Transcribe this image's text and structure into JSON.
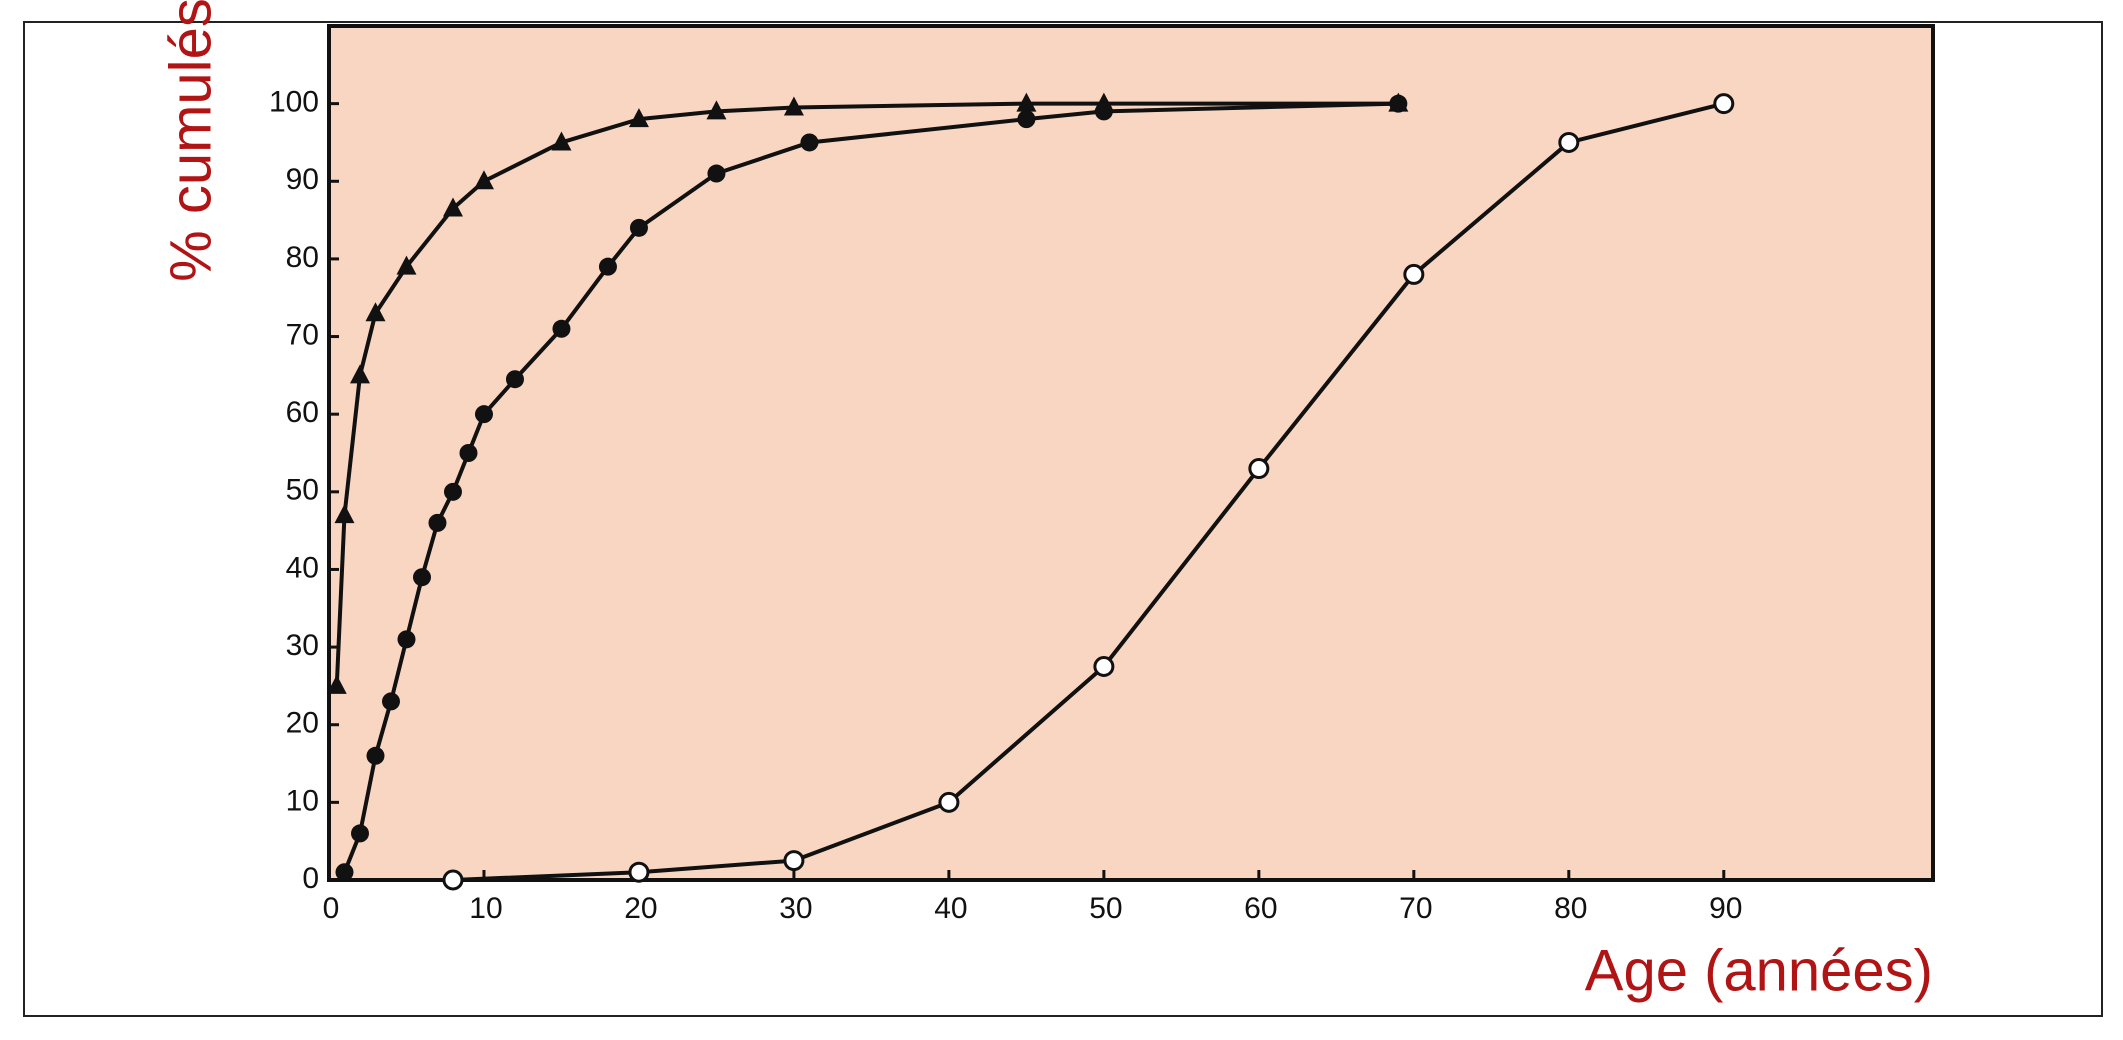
{
  "chart_data": {
    "type": "line",
    "y_label": "% cumulés",
    "x_label": "Age (années)",
    "xlim": [
      0,
      103.5
    ],
    "ylim": [
      0,
      110
    ],
    "xticks": [
      0,
      10,
      20,
      30,
      40,
      50,
      60,
      70,
      80,
      90
    ],
    "yticks": [
      0,
      10,
      20,
      30,
      40,
      50,
      60,
      70,
      80,
      90,
      100
    ],
    "grid": false,
    "background": "#f9d6c2",
    "label_color": "#b01414",
    "series": [
      {
        "color": "#111111",
        "marker": "triangle",
        "x": [
          0.5,
          1,
          2,
          3,
          5,
          8,
          10,
          15,
          20,
          25,
          30,
          45,
          50,
          69
        ],
        "values": [
          25,
          47,
          65,
          73,
          79,
          86.5,
          90,
          95,
          98,
          99,
          99.5,
          100,
          100,
          100
        ]
      },
      {
        "color": "#111111",
        "marker": "filled-circle",
        "x": [
          1,
          2,
          3,
          4,
          5,
          6,
          7,
          8,
          9,
          10,
          12,
          15,
          18,
          20,
          25,
          31,
          45,
          50,
          69
        ],
        "values": [
          1,
          6,
          16,
          23,
          31,
          39,
          46,
          50,
          55,
          60,
          64.5,
          71,
          79,
          84,
          91,
          95,
          98,
          99,
          100
        ]
      },
      {
        "color": "#111111",
        "marker": "open-circle",
        "x": [
          8,
          20,
          30,
          40,
          50,
          60,
          70,
          80,
          90
        ],
        "values": [
          0,
          1,
          2.5,
          10,
          27.5,
          53,
          78,
          95,
          100
        ]
      }
    ]
  }
}
